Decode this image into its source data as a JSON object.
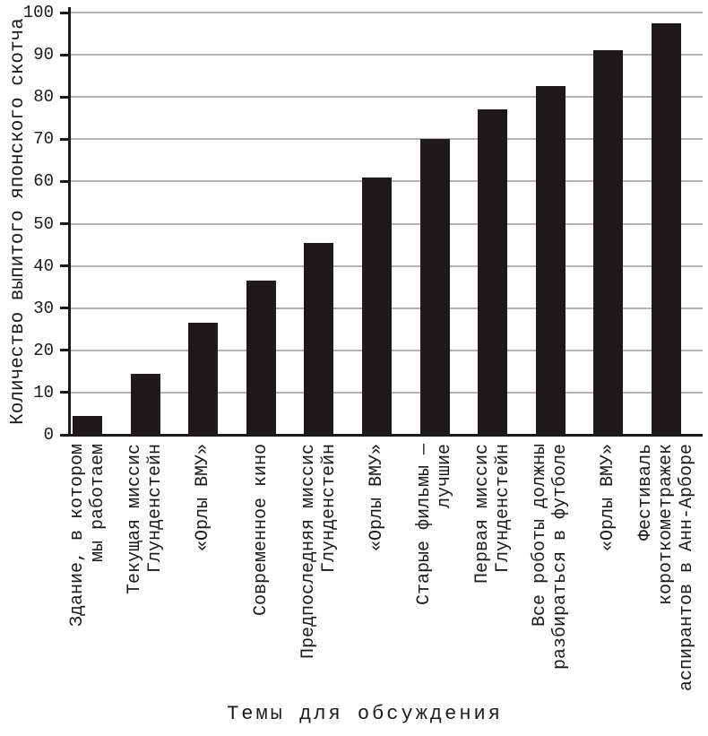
{
  "chart_data": {
    "type": "bar",
    "title": "",
    "xlabel": "Темы для обсуждения",
    "ylabel": "Количество выпитого японского скотча",
    "ylim": [
      0,
      100
    ],
    "yticks": [
      0,
      10,
      20,
      30,
      40,
      50,
      60,
      70,
      80,
      90,
      100
    ],
    "grid": true,
    "legend": false,
    "categories": [
      "Здание, в котором мы работаем",
      "Текущая миссис Глунденстейн",
      "«Орлы ВМУ»",
      "Современное кино",
      "Предпоследняя миссис Глунденстейн",
      "«Орлы ВМУ»",
      "Старые фильмы — лучшие",
      "Первая миссис Глунденстейн",
      "Все роботы должны разбираться в футболе",
      "«Орлы ВМУ»",
      "Фестиваль короткометражек аспирантов в Анн-Арборе"
    ],
    "category_lines": [
      [
        "Здание, в котором",
        "мы работаем"
      ],
      [
        "Текущая миссис",
        "Глунденстейн"
      ],
      [
        "«Орлы ВМУ»"
      ],
      [
        "Современное кино"
      ],
      [
        "Предпоследняя миссис",
        "Глунденстейн"
      ],
      [
        "«Орлы ВМУ»"
      ],
      [
        "Старые фильмы —",
        "лучшие"
      ],
      [
        "Первая миссис",
        "Глунденстейн"
      ],
      [
        "Все роботы должны",
        "разбираться в футболе"
      ],
      [
        "«Орлы ВМУ»"
      ],
      [
        "Фестиваль",
        "короткометражек",
        "аспирантов в Анн-Арборе"
      ]
    ],
    "values": [
      4.5,
      14.5,
      26.5,
      36.5,
      45.5,
      61,
      70,
      77,
      82.5,
      91,
      97.5
    ],
    "bar_color": "#1e1a1b",
    "grid_color": "#b3b3b3",
    "axis_color": "#1a1a1a",
    "background_color": "#ffffff"
  }
}
